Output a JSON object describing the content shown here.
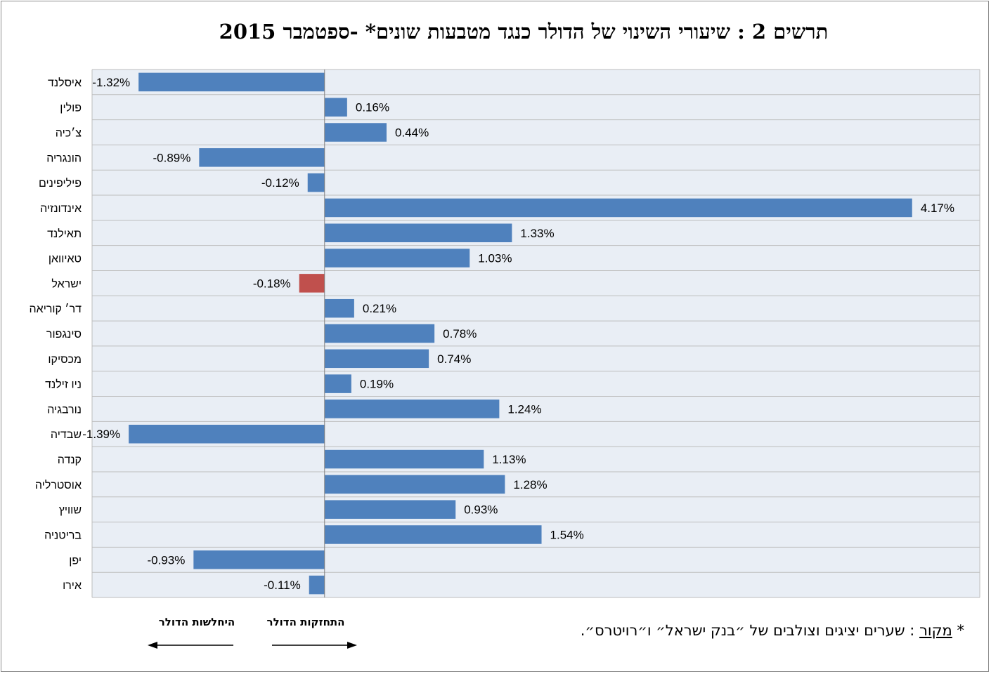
{
  "title": "תרשים 2 : שיעורי השינוי של הדולר כנגד מטבעות שונים* -ספטמבר 2015",
  "colors": {
    "plot_bg": "#e9eef5",
    "bar": "#4f81bd",
    "highlight_bar": "#c0504d",
    "grid": "#bdbdbd",
    "axis": "#808080"
  },
  "chart_data": {
    "type": "bar",
    "orientation": "horizontal",
    "title": "תרשים 2 : שיעורי השינוי של הדולר כנגד מטבעות שונים* -ספטמבר 2015",
    "xlabel": "",
    "ylabel": "",
    "xlim": [
      -1.65,
      4.65
    ],
    "value_format": "percent",
    "highlight_category": "ישראל",
    "categories": [
      "איסלנד",
      "פולין",
      "צ׳כיה",
      "הונגריה",
      "פיליפינים",
      "אינדונזיה",
      "תאילנד",
      "טאיוואן",
      "ישראל",
      "דר׳ קוריאה",
      "סינגפור",
      "מכסיקו",
      "ניו זילנד",
      "נורבגיה",
      "שבדיה",
      "קנדה",
      "אוסטרליה",
      "שוויץ",
      "בריטניה",
      "יפן",
      "אירו"
    ],
    "values": [
      -1.32,
      0.16,
      0.44,
      -0.89,
      -0.12,
      4.17,
      1.33,
      1.03,
      -0.18,
      0.21,
      0.78,
      0.74,
      0.19,
      1.24,
      -1.39,
      1.13,
      1.28,
      0.93,
      1.54,
      -0.93,
      -0.11
    ],
    "value_labels": [
      "-1.32%",
      "0.16%",
      "0.44%",
      "-0.89%",
      "-0.12%",
      "4.17%",
      "1.33%",
      "1.03%",
      "-0.18%",
      "0.21%",
      "0.78%",
      "0.74%",
      "0.19%",
      "1.24%",
      "-1.39%",
      "1.13%",
      "1.28%",
      "0.93%",
      "1.54%",
      "-0.93%",
      "-0.11%"
    ],
    "legend": {
      "left_label": "היחלשות הדולר",
      "right_label": "התחזקות הדולר"
    }
  },
  "source_note": {
    "star": "*",
    "label": "מקור",
    "text": ": שערים יציגים וצולבים של ״בנק ישראל״ ו״רויטרס״."
  }
}
